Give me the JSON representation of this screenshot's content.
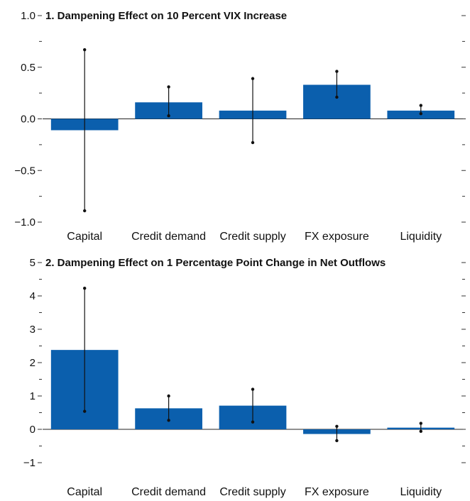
{
  "chart_data": [
    {
      "type": "bar",
      "title": "1. Dampening Effect on 10 Percent VIX Increase",
      "categories": [
        "Capital",
        "Credit demand",
        "Credit supply",
        "FX exposure",
        "Liquidity"
      ],
      "values": [
        -0.11,
        0.16,
        0.08,
        0.33,
        0.08
      ],
      "error_low": [
        -0.89,
        0.03,
        -0.23,
        0.21,
        0.05
      ],
      "error_high": [
        0.67,
        0.31,
        0.39,
        0.46,
        0.13
      ],
      "ylim": [
        -1.0,
        1.0
      ],
      "yticks": [
        -1.0,
        -0.5,
        0.0,
        0.5,
        1.0
      ],
      "ytick_labels": [
        "−1.0",
        "−0.5",
        "0.0",
        "0.5",
        "1.0"
      ],
      "bar_color": "#0b5fad",
      "grid": false
    },
    {
      "type": "bar",
      "title": "2. Dampening Effect on 1 Percentage Point Change in Net Outflows",
      "categories": [
        "Capital",
        "Credit demand",
        "Credit supply",
        "FX exposure",
        "Liquidity"
      ],
      "values": [
        2.38,
        0.63,
        0.71,
        -0.14,
        0.05
      ],
      "error_low": [
        0.54,
        0.27,
        0.22,
        -0.34,
        -0.06
      ],
      "error_high": [
        4.23,
        1.0,
        1.2,
        0.09,
        0.18
      ],
      "ylim": [
        -1,
        5
      ],
      "yticks": [
        -1,
        0,
        1,
        2,
        3,
        4,
        5
      ],
      "ytick_labels": [
        "−1",
        "0",
        "1",
        "2",
        "3",
        "4",
        "5"
      ],
      "bar_color": "#0b5fad",
      "grid": false
    }
  ]
}
